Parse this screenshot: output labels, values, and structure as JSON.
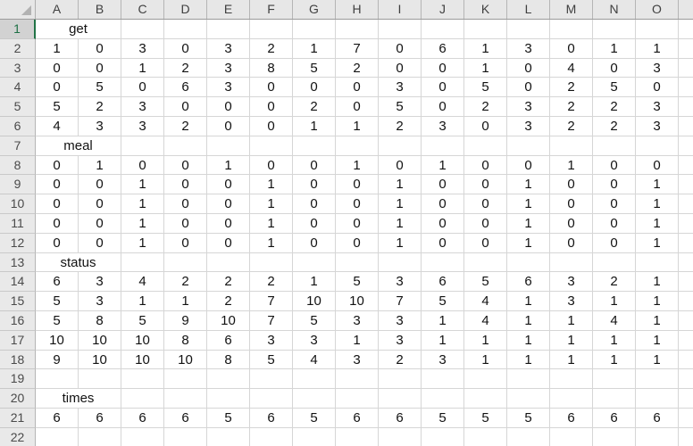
{
  "app": {
    "type": "spreadsheet-grid",
    "selected_cell": "A1"
  },
  "colors": {
    "accent_green": "#217346",
    "header_bg": "#e7e7e7",
    "selected_header_bg": "#d2d2d2",
    "gridline": "#d6d6d6",
    "header_separator": "#b5b5b5",
    "cell_text": "#121212"
  },
  "icons": {
    "select_all_corner": "triangle-icon"
  },
  "grid": {
    "column_headers": [
      "A",
      "B",
      "C",
      "D",
      "E",
      "F",
      "G",
      "H",
      "I",
      "J",
      "K",
      "L",
      "M",
      "N",
      "O"
    ],
    "partial_column_header": "",
    "rows": [
      {
        "num": "1",
        "type": "label",
        "label": "get",
        "selected": true
      },
      {
        "num": "2",
        "type": "data",
        "cells": [
          "1",
          "0",
          "3",
          "0",
          "3",
          "2",
          "1",
          "7",
          "0",
          "6",
          "1",
          "3",
          "0",
          "1",
          "1"
        ]
      },
      {
        "num": "3",
        "type": "data",
        "cells": [
          "0",
          "0",
          "1",
          "2",
          "3",
          "8",
          "5",
          "2",
          "0",
          "0",
          "1",
          "0",
          "4",
          "0",
          "3"
        ]
      },
      {
        "num": "4",
        "type": "data",
        "cells": [
          "0",
          "5",
          "0",
          "6",
          "3",
          "0",
          "0",
          "0",
          "3",
          "0",
          "5",
          "0",
          "2",
          "5",
          "0"
        ]
      },
      {
        "num": "5",
        "type": "data",
        "cells": [
          "5",
          "2",
          "3",
          "0",
          "0",
          "0",
          "2",
          "0",
          "5",
          "0",
          "2",
          "3",
          "2",
          "2",
          "3"
        ]
      },
      {
        "num": "6",
        "type": "data",
        "cells": [
          "4",
          "3",
          "3",
          "2",
          "0",
          "0",
          "1",
          "1",
          "2",
          "3",
          "0",
          "3",
          "2",
          "2",
          "3"
        ]
      },
      {
        "num": "7",
        "type": "label",
        "label": "meal"
      },
      {
        "num": "8",
        "type": "data",
        "cells": [
          "0",
          "1",
          "0",
          "0",
          "1",
          "0",
          "0",
          "1",
          "0",
          "1",
          "0",
          "0",
          "1",
          "0",
          "0"
        ]
      },
      {
        "num": "9",
        "type": "data",
        "cells": [
          "0",
          "0",
          "1",
          "0",
          "0",
          "1",
          "0",
          "0",
          "1",
          "0",
          "0",
          "1",
          "0",
          "0",
          "1"
        ]
      },
      {
        "num": "10",
        "type": "data",
        "cells": [
          "0",
          "0",
          "1",
          "0",
          "0",
          "1",
          "0",
          "0",
          "1",
          "0",
          "0",
          "1",
          "0",
          "0",
          "1"
        ]
      },
      {
        "num": "11",
        "type": "data",
        "cells": [
          "0",
          "0",
          "1",
          "0",
          "0",
          "1",
          "0",
          "0",
          "1",
          "0",
          "0",
          "1",
          "0",
          "0",
          "1"
        ]
      },
      {
        "num": "12",
        "type": "data",
        "cells": [
          "0",
          "0",
          "1",
          "0",
          "0",
          "1",
          "0",
          "0",
          "1",
          "0",
          "0",
          "1",
          "0",
          "0",
          "1"
        ]
      },
      {
        "num": "13",
        "type": "label",
        "label": "status"
      },
      {
        "num": "14",
        "type": "data",
        "cells": [
          "6",
          "3",
          "4",
          "2",
          "2",
          "2",
          "1",
          "5",
          "3",
          "6",
          "5",
          "6",
          "3",
          "2",
          "1"
        ]
      },
      {
        "num": "15",
        "type": "data",
        "cells": [
          "5",
          "3",
          "1",
          "1",
          "2",
          "7",
          "10",
          "10",
          "7",
          "5",
          "4",
          "1",
          "3",
          "1",
          "1"
        ]
      },
      {
        "num": "16",
        "type": "data",
        "cells": [
          "5",
          "8",
          "5",
          "9",
          "10",
          "7",
          "5",
          "3",
          "3",
          "1",
          "4",
          "1",
          "1",
          "4",
          "1"
        ]
      },
      {
        "num": "17",
        "type": "data",
        "cells": [
          "10",
          "10",
          "10",
          "8",
          "6",
          "3",
          "3",
          "1",
          "3",
          "1",
          "1",
          "1",
          "1",
          "1",
          "1"
        ]
      },
      {
        "num": "18",
        "type": "data",
        "cells": [
          "9",
          "10",
          "10",
          "10",
          "8",
          "5",
          "4",
          "3",
          "2",
          "3",
          "1",
          "1",
          "1",
          "1",
          "1"
        ]
      },
      {
        "num": "19",
        "type": "empty"
      },
      {
        "num": "20",
        "type": "label",
        "label": "times"
      },
      {
        "num": "21",
        "type": "data",
        "cells": [
          "6",
          "6",
          "6",
          "6",
          "5",
          "6",
          "5",
          "6",
          "6",
          "5",
          "5",
          "5",
          "6",
          "6",
          "6"
        ]
      },
      {
        "num": "22",
        "type": "empty"
      }
    ]
  }
}
